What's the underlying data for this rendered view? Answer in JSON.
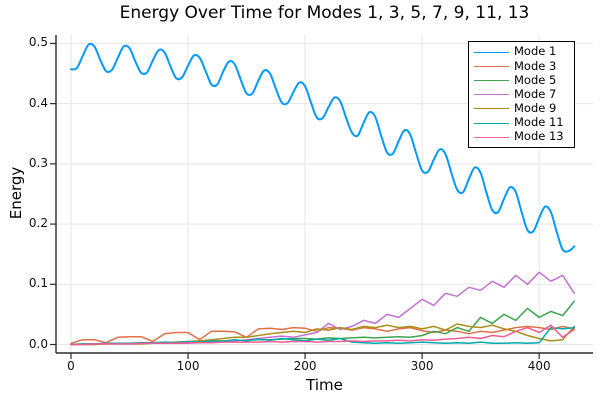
{
  "title": "Energy Over Time for Modes 1, 3, 5, 7, 9, 11, 13",
  "colors": {
    "background": "#ffffff",
    "gridline": "#e7e7e7",
    "axis": "#2b2b2b",
    "text": "#000000",
    "legend_border": "#000000",
    "legend_background": "#ffffff"
  },
  "chart_data": {
    "type": "line",
    "title": "Energy Over Time for Modes 1, 3, 5, 7, 9, 11, 13",
    "xlabel": "Time",
    "ylabel": "Energy",
    "xlim": [
      -12.8,
      446
    ],
    "ylim": [
      -0.0141,
      0.514
    ],
    "grid": true,
    "legend_position": "top-right",
    "xticks": {
      "values": [
        0,
        100,
        200,
        300,
        400
      ],
      "labels": [
        "0",
        "100",
        "200",
        "300",
        "400"
      ]
    },
    "yticks": {
      "values": [
        0.0,
        0.1,
        0.2,
        0.3,
        0.4,
        0.5
      ],
      "labels": [
        "0.0",
        "0.1",
        "0.2",
        "0.3",
        "0.4",
        "0.5"
      ]
    },
    "series": [
      {
        "name": "Mode 1",
        "color": "#009AFA",
        "smooth": true,
        "x_start": 0,
        "x_step": 5,
        "values": [
          0.457,
          0.459,
          0.479,
          0.498,
          0.495,
          0.473,
          0.454,
          0.456,
          0.476,
          0.495,
          0.492,
          0.47,
          0.451,
          0.452,
          0.472,
          0.489,
          0.485,
          0.462,
          0.442,
          0.444,
          0.463,
          0.48,
          0.476,
          0.454,
          0.432,
          0.432,
          0.453,
          0.47,
          0.465,
          0.44,
          0.417,
          0.417,
          0.438,
          0.455,
          0.45,
          0.425,
          0.402,
          0.401,
          0.419,
          0.435,
          0.429,
          0.402,
          0.377,
          0.376,
          0.394,
          0.41,
          0.404,
          0.377,
          0.352,
          0.347,
          0.368,
          0.386,
          0.378,
          0.347,
          0.319,
          0.317,
          0.338,
          0.356,
          0.348,
          0.317,
          0.289,
          0.287,
          0.307,
          0.324,
          0.316,
          0.285,
          0.257,
          0.253,
          0.275,
          0.294,
          0.285,
          0.252,
          0.223,
          0.22,
          0.242,
          0.261,
          0.253,
          0.22,
          0.19,
          0.188,
          0.21,
          0.229,
          0.22,
          0.187,
          0.158,
          0.155,
          0.163
        ]
      },
      {
        "name": "Mode 3",
        "color": "#E36F47",
        "smooth": false,
        "x_start": 0,
        "x_step": 10,
        "values": [
          0.002,
          0.008,
          0.008,
          0.003,
          0.012,
          0.013,
          0.013,
          0.005,
          0.018,
          0.02,
          0.02,
          0.008,
          0.022,
          0.022,
          0.021,
          0.012,
          0.026,
          0.027,
          0.025,
          0.028,
          0.027,
          0.022,
          0.028,
          0.027,
          0.024,
          0.028,
          0.026,
          0.022,
          0.026,
          0.028,
          0.023,
          0.02,
          0.024,
          0.022,
          0.018,
          0.022,
          0.02,
          0.024,
          0.028,
          0.03,
          0.028,
          0.025,
          0.03,
          0.026
        ]
      },
      {
        "name": "Mode 5",
        "color": "#3EA44E",
        "smooth": false,
        "x_start": 0,
        "x_step": 10,
        "values": [
          0.0,
          0.001,
          0.001,
          0.001,
          0.002,
          0.002,
          0.002,
          0.003,
          0.003,
          0.004,
          0.004,
          0.005,
          0.006,
          0.006,
          0.007,
          0.007,
          0.008,
          0.008,
          0.009,
          0.01,
          0.01,
          0.009,
          0.011,
          0.01,
          0.011,
          0.012,
          0.011,
          0.012,
          0.013,
          0.012,
          0.015,
          0.022,
          0.018,
          0.028,
          0.022,
          0.045,
          0.035,
          0.05,
          0.04,
          0.06,
          0.045,
          0.055,
          0.048,
          0.072
        ]
      },
      {
        "name": "Mode 7",
        "color": "#C371D2",
        "smooth": false,
        "x_start": 0,
        "x_step": 10,
        "values": [
          0.0,
          0.0,
          0.0,
          0.001,
          0.001,
          0.001,
          0.001,
          0.002,
          0.002,
          0.002,
          0.002,
          0.003,
          0.004,
          0.005,
          0.006,
          0.008,
          0.01,
          0.012,
          0.014,
          0.012,
          0.016,
          0.02,
          0.035,
          0.025,
          0.03,
          0.04,
          0.035,
          0.05,
          0.045,
          0.06,
          0.075,
          0.065,
          0.085,
          0.08,
          0.095,
          0.09,
          0.105,
          0.095,
          0.115,
          0.1,
          0.12,
          0.105,
          0.115,
          0.085
        ]
      },
      {
        "name": "Mode 9",
        "color": "#AC8E18",
        "smooth": false,
        "x_start": 0,
        "x_step": 10,
        "values": [
          0.0,
          0.0,
          0.0,
          0.001,
          0.001,
          0.001,
          0.001,
          0.002,
          0.003,
          0.004,
          0.005,
          0.006,
          0.008,
          0.01,
          0.012,
          0.012,
          0.015,
          0.018,
          0.02,
          0.022,
          0.02,
          0.026,
          0.024,
          0.028,
          0.025,
          0.03,
          0.028,
          0.032,
          0.028,
          0.03,
          0.026,
          0.03,
          0.024,
          0.034,
          0.03,
          0.028,
          0.032,
          0.026,
          0.022,
          0.015,
          0.01,
          0.006,
          0.008,
          0.03
        ]
      },
      {
        "name": "Mode 11",
        "color": "#00AAAE",
        "smooth": false,
        "x_start": 0,
        "x_step": 10,
        "values": [
          0.0,
          0.001,
          0.001,
          0.002,
          0.002,
          0.002,
          0.003,
          0.003,
          0.004,
          0.003,
          0.005,
          0.004,
          0.006,
          0.005,
          0.008,
          0.006,
          0.009,
          0.007,
          0.01,
          0.008,
          0.006,
          0.009,
          0.007,
          0.01,
          0.004,
          0.003,
          0.002,
          0.003,
          0.002,
          0.003,
          0.004,
          0.003,
          0.002,
          0.003,
          0.002,
          0.004,
          0.002,
          0.002,
          0.003,
          0.002,
          0.003,
          0.028,
          0.026,
          0.028
        ]
      },
      {
        "name": "Mode 13",
        "color": "#ED5D92",
        "smooth": false,
        "x_start": 0,
        "x_step": 10,
        "values": [
          0.0,
          0.0,
          0.001,
          0.001,
          0.001,
          0.001,
          0.002,
          0.002,
          0.002,
          0.002,
          0.003,
          0.003,
          0.003,
          0.004,
          0.004,
          0.004,
          0.004,
          0.005,
          0.004,
          0.005,
          0.005,
          0.004,
          0.005,
          0.005,
          0.006,
          0.005,
          0.006,
          0.006,
          0.007,
          0.006,
          0.008,
          0.007,
          0.009,
          0.01,
          0.012,
          0.01,
          0.015,
          0.013,
          0.022,
          0.028,
          0.02,
          0.032,
          0.012,
          0.025
        ]
      }
    ]
  }
}
